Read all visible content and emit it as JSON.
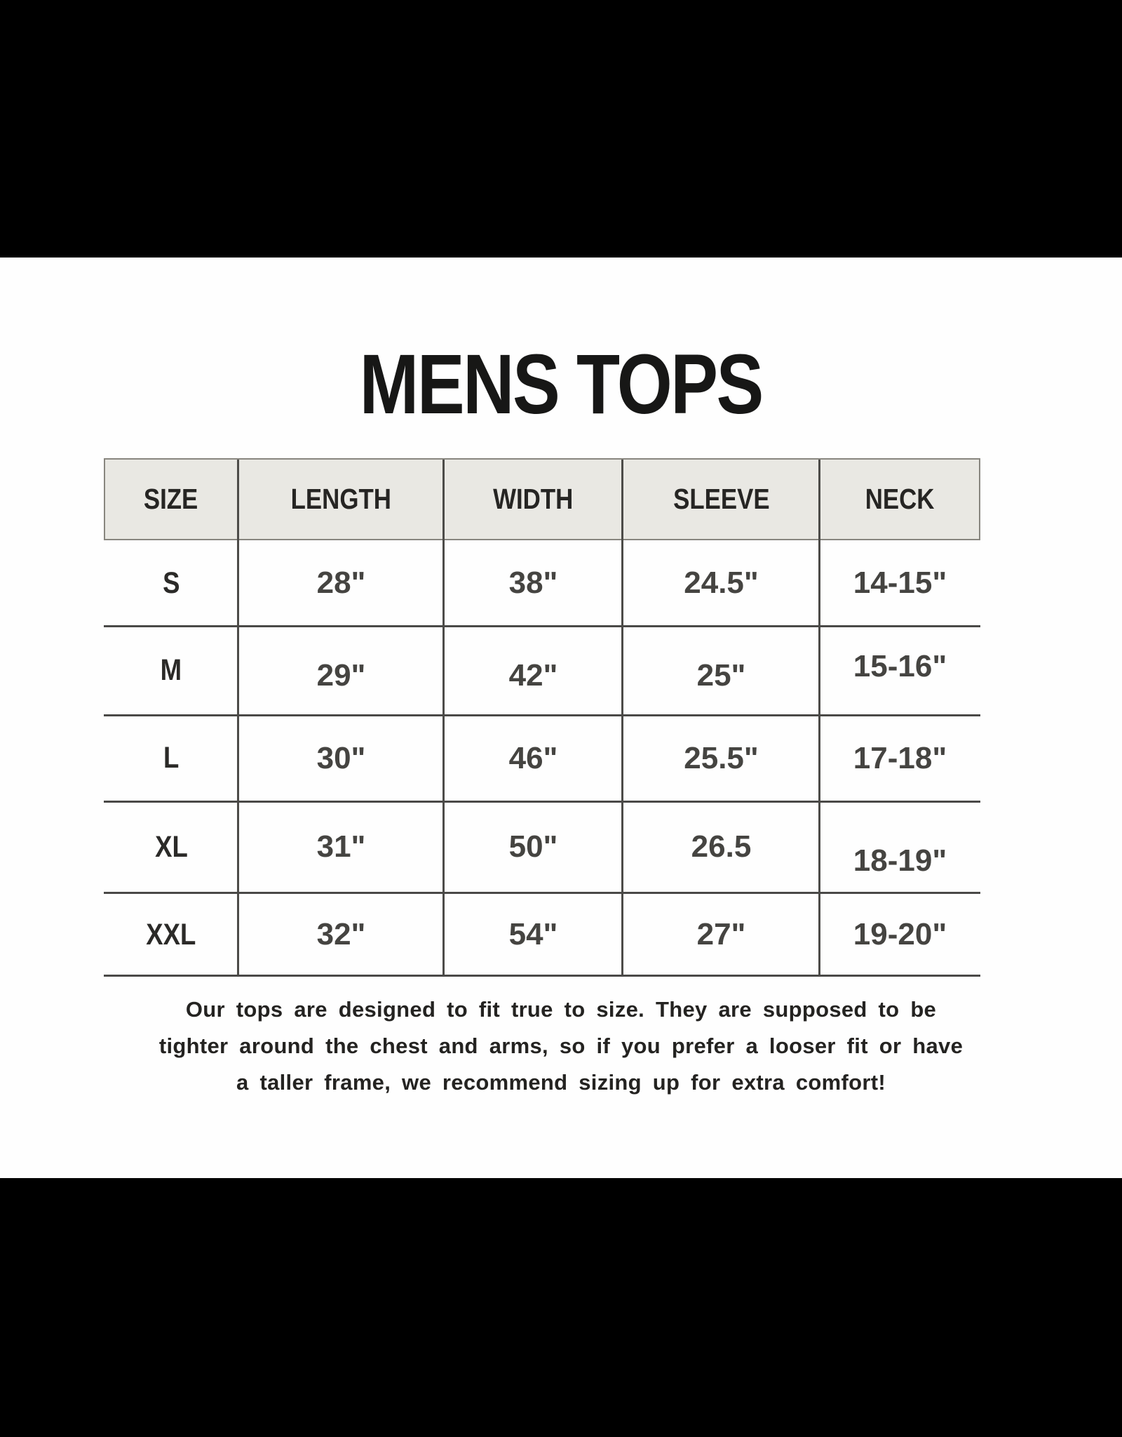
{
  "page": {
    "title": "MENS TOPS"
  },
  "table": {
    "headers": [
      "SIZE",
      "LENGTH",
      "WIDTH",
      "SLEEVE",
      "NECK"
    ],
    "rows": [
      {
        "size": "S",
        "length": "28\"",
        "width": "38\"",
        "sleeve": "24.5\"",
        "neck": "14-15\""
      },
      {
        "size": "M",
        "length": "29\"",
        "width": "42\"",
        "sleeve": "25\"",
        "neck": "15-16\""
      },
      {
        "size": "L",
        "length": "30\"",
        "width": "46\"",
        "sleeve": "25.5\"",
        "neck": "17-18\""
      },
      {
        "size": "XL",
        "length": "31\"",
        "width": "50\"",
        "sleeve": "26.5",
        "neck": "18-19\""
      },
      {
        "size": "XXL",
        "length": "32\"",
        "width": "54\"",
        "sleeve": "27\"",
        "neck": "19-20\""
      }
    ]
  },
  "footer": {
    "lines": [
      "Our tops are designed to fit true to size. They are supposed to be",
      "tighter around the chest and arms, so if you prefer a looser fit or have",
      "a taller frame, we recommend sizing up for extra comfort!"
    ]
  },
  "colors": {
    "page_background": "#000000",
    "panel_background": "#fefefe",
    "header_fill": "#e9e8e3",
    "grid_line": "#4d4c49",
    "header_border": "#88867f",
    "text": "#242321"
  }
}
